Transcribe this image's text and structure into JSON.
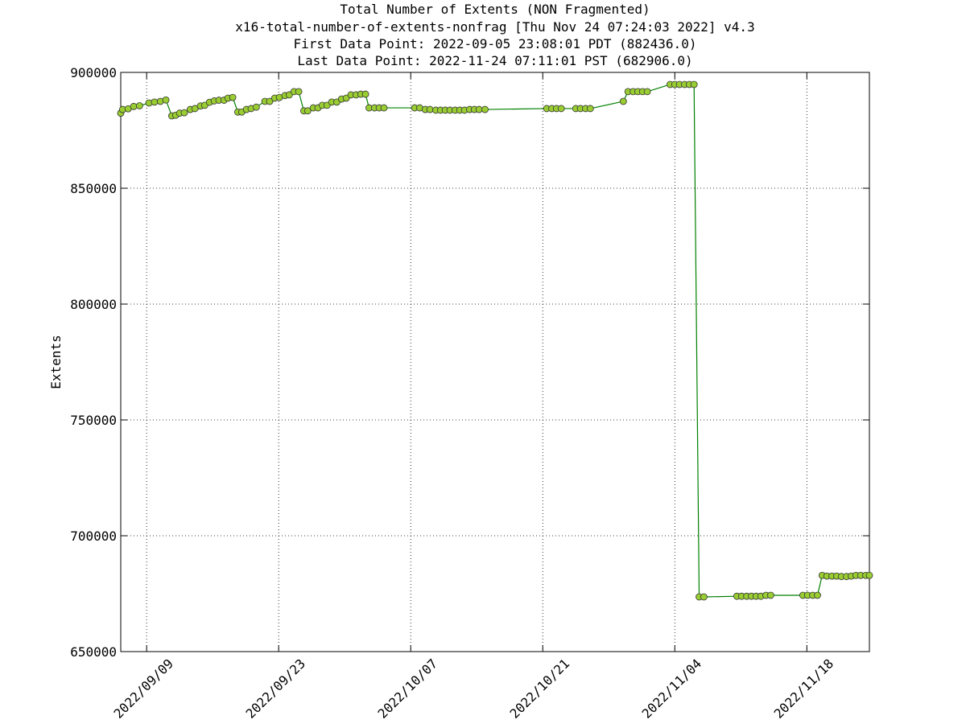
{
  "chart_data": {
    "type": "line",
    "title": "Total Number of Extents (NON Fragmented)",
    "subtitle": [
      "x16-total-number-of-extents-nonfrag [Thu Nov 24 07:24:03 2022] v4.3",
      "First Data Point: 2022-09-05 23:08:01 PDT (882436.0)",
      "Last Data Point:  2022-11-24 07:11:01 PST (682906.0)"
    ],
    "y_label": "Extents",
    "x": [
      "2022-09-06 06:08",
      "2022-09-06 11:00",
      "2022-09-07 01:00",
      "2022-09-07 15:00",
      "2022-09-08 06:00",
      "2022-09-09 06:00",
      "2022-09-09 20:00",
      "2022-09-10 11:00",
      "2022-09-11 01:00",
      "2022-09-11 16:00",
      "2022-09-12 02:00",
      "2022-09-12 12:00",
      "2022-09-13 00:00",
      "2022-09-13 15:00",
      "2022-09-14 03:00",
      "2022-09-14 17:00",
      "2022-09-15 04:00",
      "2022-09-15 16:00",
      "2022-09-16 04:00",
      "2022-09-16 16:00",
      "2022-09-17 05:00",
      "2022-09-17 15:00",
      "2022-09-18 03:00",
      "2022-09-18 16:00",
      "2022-09-19 02:00",
      "2022-09-19 14:00",
      "2022-09-20 02:00",
      "2022-09-20 15:00",
      "2022-09-21 13:00",
      "2022-09-22 01:00",
      "2022-09-22 14:00",
      "2022-09-23 02:00",
      "2022-09-23 16:00",
      "2022-09-24 03:00",
      "2022-09-24 15:00",
      "2022-09-25 03:00",
      "2022-09-25 16:00",
      "2022-09-26 02:00",
      "2022-09-26 16:00",
      "2022-09-27 04:00",
      "2022-09-27 15:00",
      "2022-09-28 03:00",
      "2022-09-28 15:00",
      "2022-09-29 04:00",
      "2022-09-29 16:00",
      "2022-09-30 04:00",
      "2022-09-30 16:00",
      "2022-10-01 05:00",
      "2022-10-01 17:00",
      "2022-10-02 05:00",
      "2022-10-02 14:00",
      "2022-10-03 04:00",
      "2022-10-03 16:00",
      "2022-10-04 04:00",
      "2022-10-07 10:00",
      "2022-10-07 23:00",
      "2022-10-08 13:00",
      "2022-10-09 01:00",
      "2022-10-09 16:00",
      "2022-10-10 04:00",
      "2022-10-10 16:00",
      "2022-10-11 04:00",
      "2022-10-11 17:00",
      "2022-10-12 05:00",
      "2022-10-12 17:00",
      "2022-10-13 06:00",
      "2022-10-13 18:00",
      "2022-10-14 06:00",
      "2022-10-14 21:00",
      "2022-10-21 10:00",
      "2022-10-21 23:00",
      "2022-10-22 11:00",
      "2022-10-22 23:00",
      "2022-10-24 12:00",
      "2022-10-25 00:00",
      "2022-10-25 13:00",
      "2022-10-26 01:00",
      "2022-10-29 13:00",
      "2022-10-30 01:00",
      "2022-10-30 14:00",
      "2022-10-31 02:00",
      "2022-10-31 14:00",
      "2022-11-01 02:00",
      "2022-11-03 12:00",
      "2022-11-04 00:00",
      "2022-11-04 12:00",
      "2022-11-05 01:00",
      "2022-11-05 13:00",
      "2022-11-06 01:00",
      "2022-11-06 14:00",
      "2022-11-07 02:00",
      "2022-11-10 14:00",
      "2022-11-11 02:00",
      "2022-11-11 15:00",
      "2022-11-12 03:00",
      "2022-11-12 15:00",
      "2022-11-13 03:00",
      "2022-11-13 16:00",
      "2022-11-14 04:00",
      "2022-11-17 14:00",
      "2022-11-18 02:00",
      "2022-11-18 15:00",
      "2022-11-19 03:00",
      "2022-11-19 15:00",
      "2022-11-20 03:00",
      "2022-11-20 16:00",
      "2022-11-21 04:00",
      "2022-11-21 16:00",
      "2022-11-22 05:00",
      "2022-11-22 17:00",
      "2022-11-23 05:00",
      "2022-11-23 17:00",
      "2022-11-24 06:00",
      "2022-11-24 15:11"
    ],
    "series": [
      {
        "name": "Extents",
        "color": "#008000",
        "marker_color": "#9acd32",
        "values": [
          882436,
          884000,
          884300,
          885300,
          885600,
          886800,
          887200,
          887500,
          888100,
          881250,
          881500,
          882400,
          882600,
          884000,
          884400,
          885500,
          885800,
          887100,
          887700,
          888000,
          888000,
          888900,
          889200,
          882900,
          882900,
          884000,
          884400,
          885000,
          887500,
          887500,
          888900,
          889200,
          890000,
          890300,
          891700,
          891700,
          883400,
          883400,
          884700,
          884700,
          885800,
          885800,
          887200,
          887200,
          888500,
          888900,
          890300,
          890300,
          890600,
          890600,
          884700,
          884700,
          884700,
          884700,
          884700,
          884700,
          884000,
          884000,
          883700,
          883700,
          883700,
          883700,
          883700,
          883700,
          883700,
          884000,
          884000,
          884000,
          884000,
          884400,
          884400,
          884400,
          884400,
          884400,
          884400,
          884400,
          884400,
          887500,
          891700,
          891700,
          891700,
          891700,
          891700,
          894800,
          894800,
          894800,
          894800,
          894800,
          894800,
          673600,
          673600,
          673900,
          673900,
          673900,
          673900,
          673900,
          673900,
          674300,
          674300,
          674300,
          674300,
          674300,
          674300,
          682900,
          682600,
          682600,
          682600,
          682400,
          682400,
          682600,
          682900,
          682900,
          682900,
          682906
        ]
      }
    ],
    "xlim": [
      "2022-09-06 06:08",
      "2022-11-24 15:11"
    ],
    "xticks": [
      {
        "value": "2022-09-09",
        "label": "2022/09/09"
      },
      {
        "value": "2022-09-23",
        "label": "2022/09/23"
      },
      {
        "value": "2022-10-07",
        "label": "2022/10/07"
      },
      {
        "value": "2022-10-21",
        "label": "2022/10/21"
      },
      {
        "value": "2022-11-04",
        "label": "2022/11/04"
      },
      {
        "value": "2022-11-18",
        "label": "2022/11/18"
      }
    ],
    "ylim": [
      650000,
      900000
    ],
    "yticks": [
      650000,
      700000,
      750000,
      800000,
      850000,
      900000
    ],
    "grid": true
  }
}
